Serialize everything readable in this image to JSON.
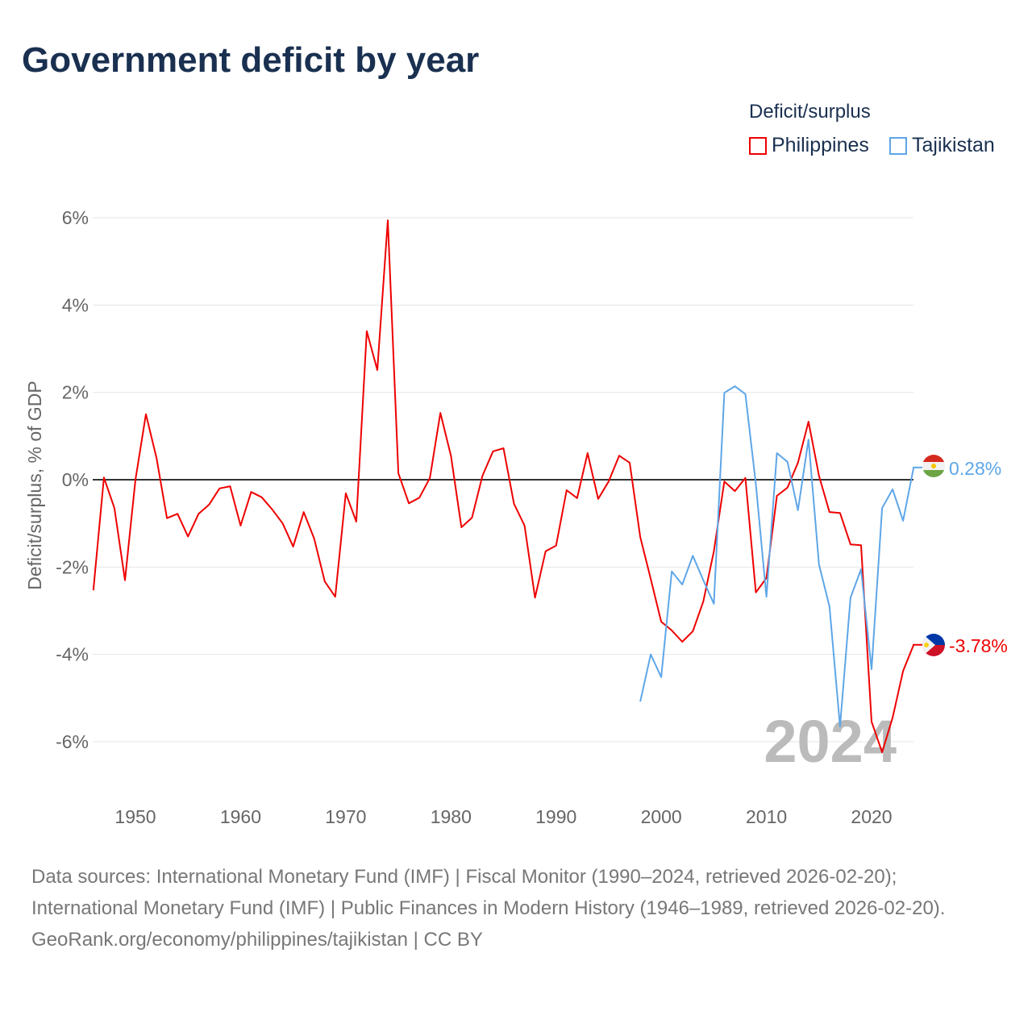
{
  "title": "Government deficit by year",
  "colors": {
    "philippines": "#ee0000",
    "tajikistan": "#5ea6e8",
    "zero": "#333333",
    "grid": "#e6e6e6"
  },
  "sources": [
    "Data sources: International Monetary Fund (IMF) | Fiscal Monitor (1990–2024, retrieved 2026-02-20); International Monetary Fund (IMF) | Public Finances in Modern History (1946–1989, retrieved 2026-02-20).",
    "GeoRank.org/economy/philippines/tajikistan | CC BY"
  ],
  "chart_data": {
    "type": "line",
    "title": "Government deficit by year",
    "legend_title": "Deficit/surplus",
    "legend_position": "top-right",
    "ylabel": "Deficit/surplus, % of GDP",
    "xlabel": "",
    "ylim": [
      -7,
      6.5
    ],
    "xlim": [
      1946,
      2024
    ],
    "yticks": [
      6,
      4,
      2,
      0,
      -2,
      -4,
      -6
    ],
    "ytick_labels": [
      "6%",
      "4%",
      "2%",
      "0%",
      "-2%",
      "-4%",
      "-6%"
    ],
    "xticks": [
      1950,
      1960,
      1970,
      1980,
      1990,
      2000,
      2010,
      2020
    ],
    "xtick_labels": [
      "1950",
      "1960",
      "1970",
      "1980",
      "1990",
      "2000",
      "2010",
      "2020"
    ],
    "grid": true,
    "year_watermark": "2024",
    "series": [
      {
        "name": "Philippines",
        "end_label": "-3.78%",
        "start": 1946,
        "values": [
          -2.53,
          0.05,
          -0.65,
          -2.3,
          0,
          1.5,
          0.5,
          -0.88,
          -0.78,
          -1.3,
          -0.78,
          -0.57,
          -0.2,
          -0.15,
          -1.05,
          -0.28,
          -0.4,
          -0.68,
          -1.0,
          -1.53,
          -0.74,
          -1.35,
          -2.33,
          -2.68,
          -0.31,
          -0.96,
          3.4,
          2.51,
          5.94,
          0.15,
          -0.54,
          -0.41,
          0.04,
          1.53,
          0.55,
          -1.09,
          -0.87,
          0.09,
          0.65,
          0.72,
          -0.55,
          -1.05,
          -2.7,
          -1.64,
          -1.51,
          -0.24,
          -0.42,
          0.61,
          -0.44,
          -0.04,
          0.55,
          0.39,
          -1.31,
          -2.27,
          -3.25,
          -3.45,
          -3.71,
          -3.47,
          -2.79,
          -1.64,
          -0.04,
          -0.26,
          0.04,
          -2.58,
          -2.25,
          -0.37,
          -0.18,
          0.39,
          1.33,
          0.09,
          -0.74,
          -0.76,
          -1.48,
          -1.5,
          -5.54,
          -6.24,
          -5.45,
          -4.38,
          -3.78
        ]
      },
      {
        "name": "Tajikistan",
        "end_label": "0.28%",
        "start": 1998,
        "values": [
          -5.08,
          -4.0,
          -4.52,
          -2.1,
          -2.4,
          -1.74,
          -2.3,
          -2.84,
          1.99,
          2.14,
          1.96,
          -0.1,
          -2.68,
          0.61,
          0.41,
          -0.7,
          0.92,
          -1.94,
          -2.9,
          -5.65,
          -2.7,
          -2.05,
          -4.34,
          -0.65,
          -0.22,
          -0.94,
          0.28
        ]
      }
    ]
  }
}
